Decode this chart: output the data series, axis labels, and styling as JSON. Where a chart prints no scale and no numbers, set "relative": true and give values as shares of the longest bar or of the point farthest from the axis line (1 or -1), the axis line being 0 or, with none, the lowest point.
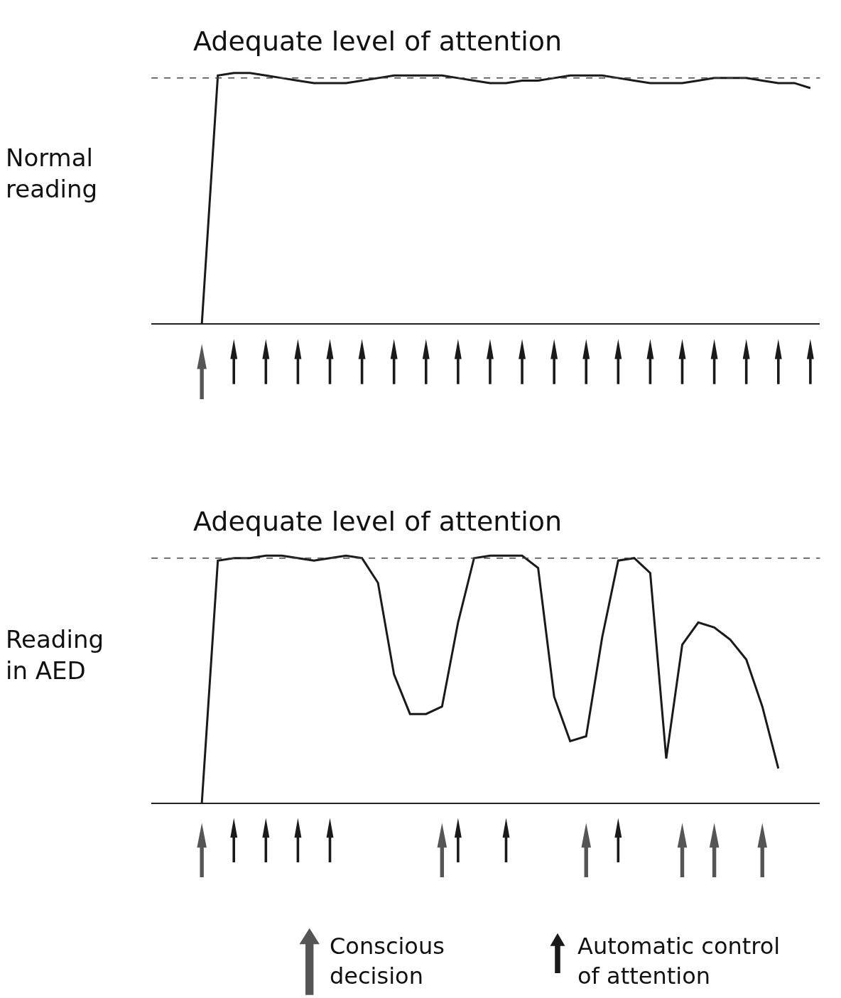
{
  "chart_data": [
    {
      "type": "line",
      "relative": true,
      "ylabel": "Normal\nreading",
      "categories": [
        null,
        null,
        null,
        null,
        null,
        null,
        null,
        null,
        null,
        null,
        null,
        null,
        null,
        null,
        null,
        null,
        null,
        null,
        null,
        null,
        null,
        null,
        null,
        null,
        null,
        null,
        null,
        null,
        null,
        null,
        null,
        null,
        null,
        null,
        null,
        null,
        null,
        null,
        null,
        null,
        null,
        null
      ],
      "ref_lines": [
        {
          "axis": "y",
          "value": 0.98,
          "label": "Adequate level of attention",
          "line_style": "dashed",
          "color": "#444444"
        }
      ],
      "series": [
        {
          "color": "#1a1a1a",
          "values": [
            null,
            null,
            null,
            0,
            0.99,
            1.0,
            1.0,
            0.99,
            0.98,
            0.97,
            0.96,
            0.96,
            0.96,
            0.97,
            0.98,
            0.99,
            0.99,
            0.99,
            0.99,
            0.98,
            0.97,
            0.96,
            0.96,
            0.97,
            0.97,
            0.98,
            0.99,
            0.99,
            0.99,
            0.98,
            0.97,
            0.96,
            0.96,
            0.96,
            0.97,
            0.98,
            0.98,
            0.98,
            0.97,
            0.96,
            0.96,
            0.94
          ]
        }
      ]
    },
    {
      "type": "line",
      "relative": true,
      "ylabel": "Reading\nin AED",
      "categories": [
        null,
        null,
        null,
        null,
        null,
        null,
        null,
        null,
        null,
        null,
        null,
        null,
        null,
        null,
        null,
        null,
        null,
        null,
        null,
        null,
        null,
        null,
        null,
        null,
        null,
        null,
        null,
        null,
        null,
        null,
        null,
        null,
        null,
        null,
        null,
        null,
        null,
        null,
        null,
        null,
        null,
        null
      ],
      "ref_lines": [
        {
          "axis": "y",
          "value": 0.99,
          "label": "Adequate level of attention",
          "line_style": "dashed",
          "color": "#444444"
        }
      ],
      "annotations": [
        "Conscious\ndecision",
        "Automatic control\nof attention"
      ],
      "series": [
        {
          "color": "#1a1a1a",
          "values": [
            null,
            null,
            null,
            0,
            0.98,
            0.99,
            0.99,
            1.0,
            1.0,
            0.99,
            0.98,
            0.99,
            1.0,
            0.99,
            0.89,
            0.52,
            0.36,
            0.36,
            0.39,
            0.73,
            0.99,
            1.0,
            1.0,
            1.0,
            0.95,
            0.43,
            0.25,
            0.27,
            0.67,
            0.98,
            0.99,
            0.93,
            0.18,
            0.64,
            0.73,
            0.71,
            0.66,
            0.58,
            0.39,
            0.14,
            null,
            null
          ]
        }
      ]
    }
  ]
}
